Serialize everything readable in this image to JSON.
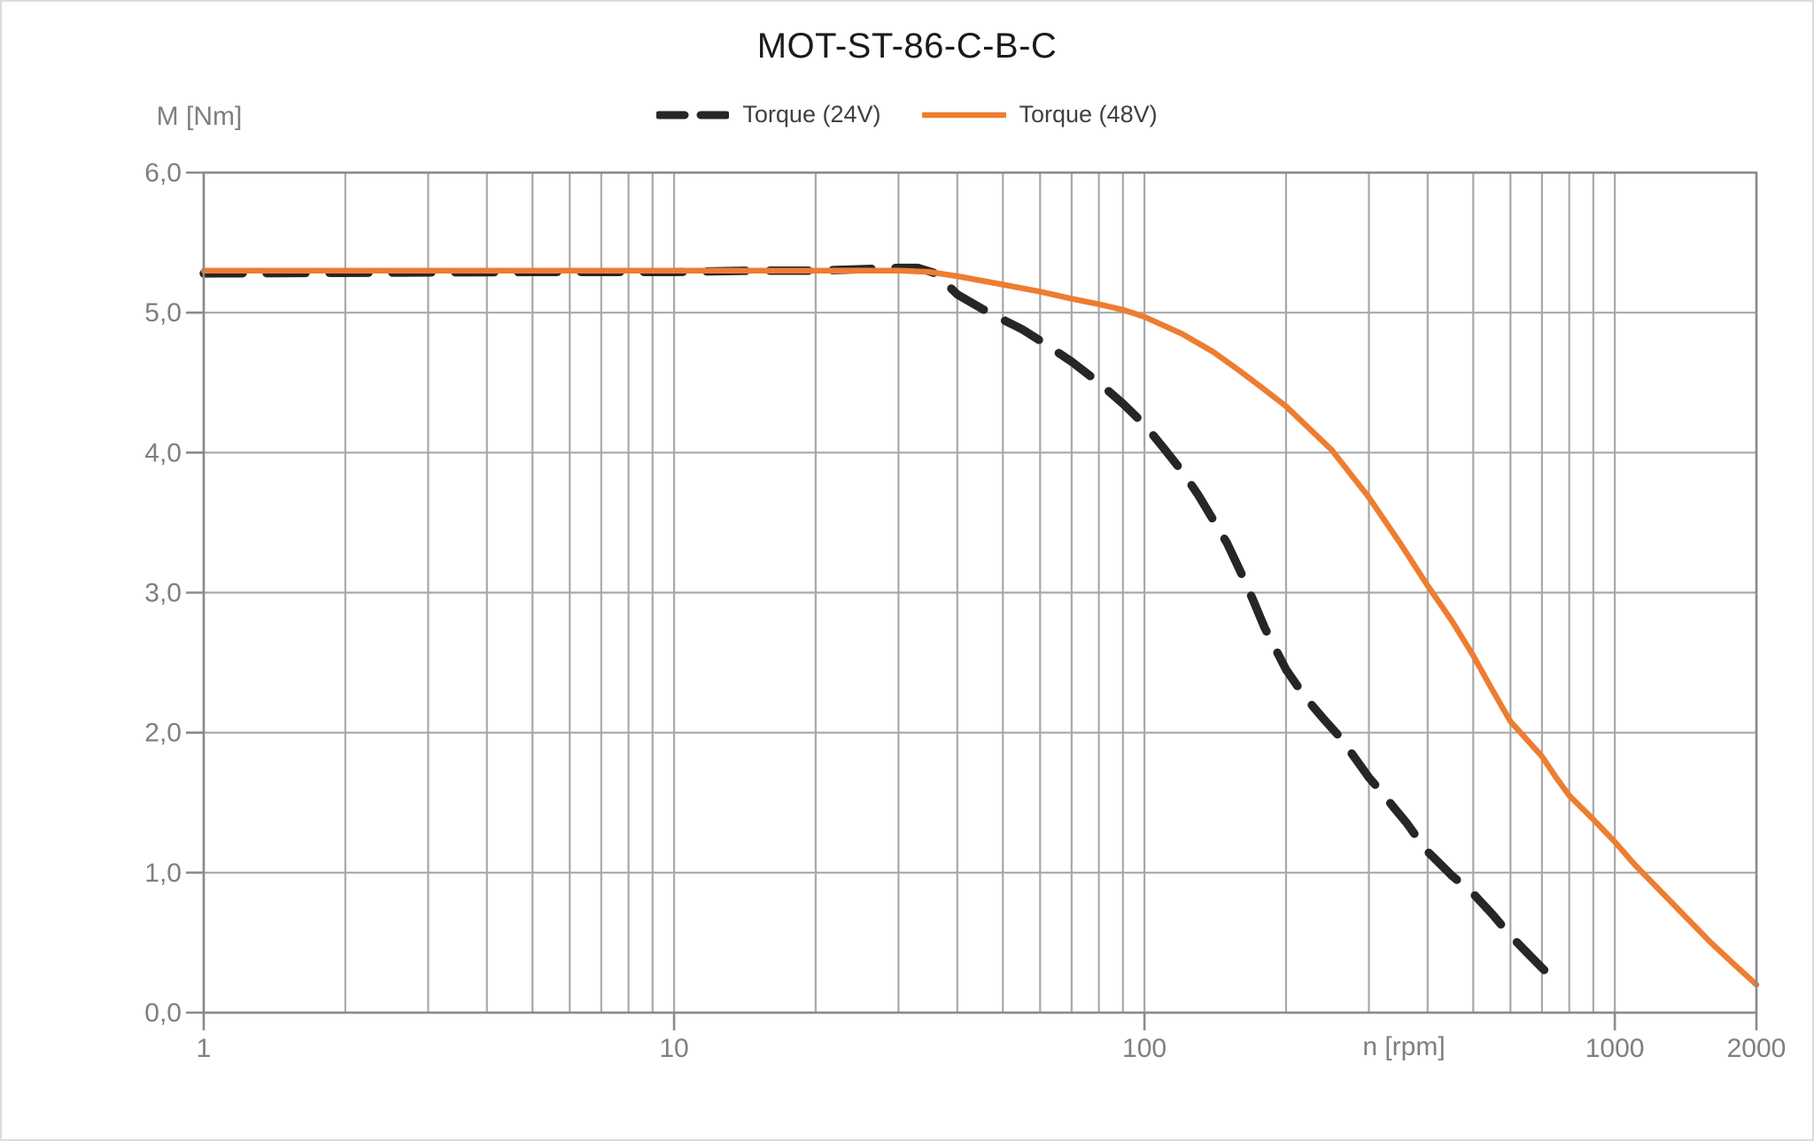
{
  "page": {
    "background": "#FFFFFF",
    "border_color": "#DCDCDC"
  },
  "title": "MOT-ST-86-C-B-C",
  "y_axis_title": "M [Nm]",
  "x_axis_title": "n [rpm]",
  "chart_data": {
    "type": "line",
    "title": "MOT-ST-86-C-B-C",
    "xlabel": "n [rpm]",
    "ylabel": "M [Nm]",
    "x_scale": "log",
    "xlim": [
      1,
      2000
    ],
    "ylim": [
      0,
      6
    ],
    "grid": "on",
    "legend_position": "top-center",
    "x_ticks": [
      {
        "value": 1,
        "label": "1"
      },
      {
        "value": 10,
        "label": "10"
      },
      {
        "value": 100,
        "label": "100"
      },
      {
        "value": 1000,
        "label": "1000"
      },
      {
        "value": 2000,
        "label": "2000"
      }
    ],
    "y_ticks": [
      {
        "value": 0,
        "label": "0,0"
      },
      {
        "value": 1,
        "label": "1,0"
      },
      {
        "value": 2,
        "label": "2,0"
      },
      {
        "value": 3,
        "label": "3,0"
      },
      {
        "value": 4,
        "label": "4,0"
      },
      {
        "value": 5,
        "label": "5,0"
      },
      {
        "value": 6,
        "label": "6,0"
      }
    ],
    "colors": {
      "grid": "#A8A8A8",
      "frame": "#8A8A8A",
      "tick_text": "#7F7F7F",
      "title_text": "#1A1A1A",
      "legend_text": "#404040"
    },
    "series": [
      {
        "name": "Torque (24V)",
        "style": "dashed",
        "color": "#262626",
        "points": [
          [
            1,
            5.28
          ],
          [
            5,
            5.29
          ],
          [
            10,
            5.29
          ],
          [
            15,
            5.3
          ],
          [
            20,
            5.3
          ],
          [
            25,
            5.31
          ],
          [
            30,
            5.32
          ],
          [
            33,
            5.32
          ],
          [
            36,
            5.28
          ],
          [
            40,
            5.13
          ],
          [
            45,
            5.03
          ],
          [
            50,
            4.95
          ],
          [
            55,
            4.88
          ],
          [
            60,
            4.8
          ],
          [
            70,
            4.65
          ],
          [
            80,
            4.5
          ],
          [
            90,
            4.35
          ],
          [
            100,
            4.2
          ],
          [
            110,
            4.03
          ],
          [
            120,
            3.87
          ],
          [
            130,
            3.7
          ],
          [
            140,
            3.52
          ],
          [
            150,
            3.35
          ],
          [
            160,
            3.15
          ],
          [
            170,
            2.95
          ],
          [
            180,
            2.75
          ],
          [
            200,
            2.45
          ],
          [
            220,
            2.25
          ],
          [
            240,
            2.1
          ],
          [
            260,
            1.97
          ],
          [
            280,
            1.82
          ],
          [
            300,
            1.68
          ],
          [
            320,
            1.57
          ],
          [
            340,
            1.46
          ],
          [
            360,
            1.36
          ],
          [
            380,
            1.25
          ],
          [
            400,
            1.15
          ],
          [
            420,
            1.08
          ],
          [
            450,
            0.98
          ],
          [
            480,
            0.9
          ],
          [
            500,
            0.85
          ],
          [
            550,
            0.7
          ],
          [
            600,
            0.55
          ],
          [
            650,
            0.43
          ],
          [
            700,
            0.32
          ],
          [
            720,
            0.28
          ]
        ]
      },
      {
        "name": "Torque (48V)",
        "style": "solid",
        "color": "#ED7D31",
        "points": [
          [
            1,
            5.3
          ],
          [
            5,
            5.3
          ],
          [
            10,
            5.3
          ],
          [
            20,
            5.3
          ],
          [
            30,
            5.3
          ],
          [
            35,
            5.29
          ],
          [
            40,
            5.26
          ],
          [
            50,
            5.2
          ],
          [
            60,
            5.15
          ],
          [
            70,
            5.1
          ],
          [
            80,
            5.06
          ],
          [
            90,
            5.02
          ],
          [
            100,
            4.97
          ],
          [
            120,
            4.85
          ],
          [
            140,
            4.72
          ],
          [
            160,
            4.58
          ],
          [
            180,
            4.45
          ],
          [
            200,
            4.33
          ],
          [
            250,
            4.02
          ],
          [
            300,
            3.68
          ],
          [
            350,
            3.35
          ],
          [
            400,
            3.05
          ],
          [
            450,
            2.8
          ],
          [
            500,
            2.55
          ],
          [
            550,
            2.3
          ],
          [
            600,
            2.08
          ],
          [
            650,
            1.95
          ],
          [
            700,
            1.83
          ],
          [
            750,
            1.68
          ],
          [
            800,
            1.55
          ],
          [
            900,
            1.38
          ],
          [
            1000,
            1.22
          ],
          [
            1100,
            1.06
          ],
          [
            1200,
            0.93
          ],
          [
            1400,
            0.7
          ],
          [
            1600,
            0.5
          ],
          [
            1800,
            0.34
          ],
          [
            2000,
            0.2
          ]
        ]
      }
    ]
  }
}
